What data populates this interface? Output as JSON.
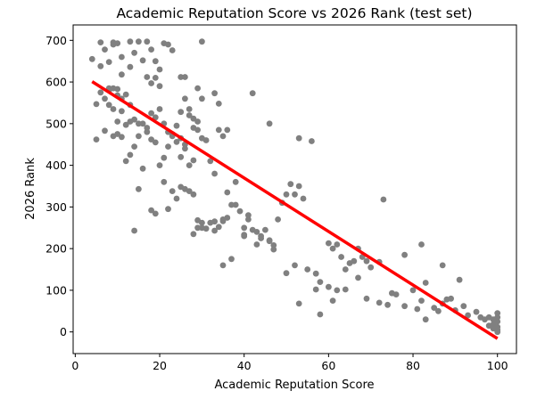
{
  "chart_data": {
    "type": "scatter",
    "title": "Academic Reputation Score vs 2026 Rank (test set)",
    "xlabel": "Academic Reputation Score",
    "ylabel": "2026 Rank",
    "xlim": [
      -0.5,
      104.5
    ],
    "ylim": [
      -52,
      737
    ],
    "xticks": [
      0,
      20,
      40,
      60,
      80,
      100
    ],
    "yticks": [
      0,
      100,
      200,
      300,
      400,
      500,
      600,
      700
    ],
    "grid": false,
    "legend": null,
    "point_color": "#808080",
    "line_color": "#ff0000",
    "fit_line": {
      "x": [
        4,
        100
      ],
      "y": [
        601,
        -16
      ]
    },
    "points": [
      [
        4,
        655
      ],
      [
        6,
        695
      ],
      [
        6,
        638
      ],
      [
        7,
        678
      ],
      [
        8,
        648
      ],
      [
        9,
        690
      ],
      [
        9,
        695
      ],
      [
        10,
        693
      ],
      [
        11,
        660
      ],
      [
        13,
        697
      ],
      [
        14,
        670
      ],
      [
        15,
        697
      ],
      [
        16,
        652
      ],
      [
        17,
        697
      ],
      [
        18,
        678
      ],
      [
        19,
        650
      ],
      [
        20,
        630
      ],
      [
        21,
        693
      ],
      [
        22,
        690
      ],
      [
        23,
        676
      ],
      [
        25,
        612
      ],
      [
        26,
        612
      ],
      [
        30,
        697
      ],
      [
        17,
        612
      ],
      [
        18,
        597
      ],
      [
        19,
        610
      ],
      [
        20,
        590
      ],
      [
        13,
        636
      ],
      [
        11,
        618
      ],
      [
        5,
        547
      ],
      [
        6,
        575
      ],
      [
        7,
        560
      ],
      [
        8,
        585
      ],
      [
        8,
        580
      ],
      [
        9,
        585
      ],
      [
        10,
        583
      ],
      [
        10,
        568
      ],
      [
        11,
        560
      ],
      [
        12,
        570
      ],
      [
        13,
        545
      ],
      [
        8,
        545
      ],
      [
        9,
        535
      ],
      [
        10,
        505
      ],
      [
        11,
        530
      ],
      [
        12,
        497
      ],
      [
        13,
        505
      ],
      [
        14,
        510
      ],
      [
        15,
        500
      ],
      [
        16,
        500
      ],
      [
        17,
        490
      ],
      [
        18,
        525
      ],
      [
        19,
        515
      ],
      [
        20,
        535
      ],
      [
        21,
        500
      ],
      [
        22,
        480
      ],
      [
        23,
        475
      ],
      [
        24,
        495
      ],
      [
        25,
        465
      ],
      [
        26,
        440
      ],
      [
        27,
        535
      ],
      [
        28,
        490
      ],
      [
        29,
        585
      ],
      [
        30,
        560
      ],
      [
        33,
        573
      ],
      [
        34,
        548
      ],
      [
        26,
        560
      ],
      [
        27,
        520
      ],
      [
        28,
        512
      ],
      [
        29,
        505
      ],
      [
        25,
        528
      ],
      [
        5,
        462
      ],
      [
        7,
        483
      ],
      [
        9,
        470
      ],
      [
        10,
        475
      ],
      [
        11,
        468
      ],
      [
        12,
        410
      ],
      [
        13,
        425
      ],
      [
        14,
        445
      ],
      [
        15,
        470
      ],
      [
        16,
        392
      ],
      [
        17,
        480
      ],
      [
        18,
        462
      ],
      [
        19,
        455
      ],
      [
        20,
        400
      ],
      [
        21,
        418
      ],
      [
        22,
        445
      ],
      [
        23,
        470
      ],
      [
        24,
        456
      ],
      [
        25,
        420
      ],
      [
        26,
        450
      ],
      [
        27,
        400
      ],
      [
        28,
        412
      ],
      [
        29,
        485
      ],
      [
        30,
        465
      ],
      [
        31,
        460
      ],
      [
        32,
        410
      ],
      [
        33,
        380
      ],
      [
        34,
        485
      ],
      [
        35,
        470
      ],
      [
        36,
        485
      ],
      [
        42,
        573
      ],
      [
        46,
        500
      ],
      [
        53,
        465
      ],
      [
        56,
        458
      ],
      [
        15,
        343
      ],
      [
        18,
        292
      ],
      [
        19,
        284
      ],
      [
        21,
        360
      ],
      [
        22,
        295
      ],
      [
        23,
        338
      ],
      [
        24,
        320
      ],
      [
        25,
        348
      ],
      [
        26,
        343
      ],
      [
        27,
        338
      ],
      [
        28,
        330
      ],
      [
        29,
        250
      ],
      [
        30,
        262
      ],
      [
        31,
        248
      ],
      [
        32,
        262
      ],
      [
        33,
        265
      ],
      [
        35,
        266
      ],
      [
        36,
        274
      ],
      [
        37,
        305
      ],
      [
        38,
        305
      ],
      [
        39,
        290
      ],
      [
        40,
        250
      ],
      [
        41,
        270
      ],
      [
        42,
        245
      ],
      [
        43,
        240
      ],
      [
        44,
        225
      ],
      [
        45,
        245
      ],
      [
        46,
        220
      ],
      [
        47,
        198
      ],
      [
        48,
        270
      ],
      [
        49,
        310
      ],
      [
        50,
        330
      ],
      [
        51,
        355
      ],
      [
        52,
        330
      ],
      [
        53,
        350
      ],
      [
        54,
        320
      ],
      [
        38,
        360
      ],
      [
        36,
        335
      ],
      [
        40,
        230
      ],
      [
        41,
        280
      ],
      [
        14,
        243
      ],
      [
        28,
        235
      ],
      [
        29,
        268
      ],
      [
        30,
        250
      ],
      [
        33,
        243
      ],
      [
        34,
        252
      ],
      [
        35,
        270
      ],
      [
        40,
        233
      ],
      [
        43,
        210
      ],
      [
        44,
        230
      ],
      [
        46,
        218
      ],
      [
        47,
        208
      ],
      [
        50,
        141
      ],
      [
        52,
        160
      ],
      [
        55,
        150
      ],
      [
        57,
        140
      ],
      [
        58,
        120
      ],
      [
        60,
        213
      ],
      [
        61,
        200
      ],
      [
        62,
        210
      ],
      [
        63,
        180
      ],
      [
        64,
        150
      ],
      [
        65,
        165
      ],
      [
        66,
        170
      ],
      [
        67,
        200
      ],
      [
        68,
        180
      ],
      [
        69,
        170
      ],
      [
        70,
        155
      ],
      [
        72,
        168
      ],
      [
        73,
        318
      ],
      [
        78,
        185
      ],
      [
        82,
        210
      ],
      [
        83,
        118
      ],
      [
        87,
        160
      ],
      [
        35,
        160
      ],
      [
        37,
        175
      ],
      [
        53,
        68
      ],
      [
        57,
        102
      ],
      [
        58,
        42
      ],
      [
        60,
        108
      ],
      [
        61,
        75
      ],
      [
        62,
        100
      ],
      [
        64,
        102
      ],
      [
        67,
        130
      ],
      [
        69,
        80
      ],
      [
        72,
        70
      ],
      [
        74,
        65
      ],
      [
        75,
        93
      ],
      [
        76,
        90
      ],
      [
        78,
        62
      ],
      [
        80,
        100
      ],
      [
        81,
        55
      ],
      [
        82,
        75
      ],
      [
        83,
        30
      ],
      [
        85,
        58
      ],
      [
        86,
        50
      ],
      [
        87,
        68
      ],
      [
        88,
        78
      ],
      [
        89,
        80
      ],
      [
        90,
        52
      ],
      [
        91,
        125
      ],
      [
        92,
        62
      ],
      [
        93,
        40
      ],
      [
        95,
        48
      ],
      [
        96,
        35
      ],
      [
        97,
        30
      ],
      [
        98,
        35
      ],
      [
        99,
        18
      ],
      [
        99,
        30
      ],
      [
        100,
        45
      ],
      [
        100,
        35
      ],
      [
        100,
        25
      ],
      [
        100,
        12
      ],
      [
        100,
        5
      ],
      [
        100,
        0
      ],
      [
        99,
        8
      ],
      [
        98,
        15
      ]
    ]
  }
}
